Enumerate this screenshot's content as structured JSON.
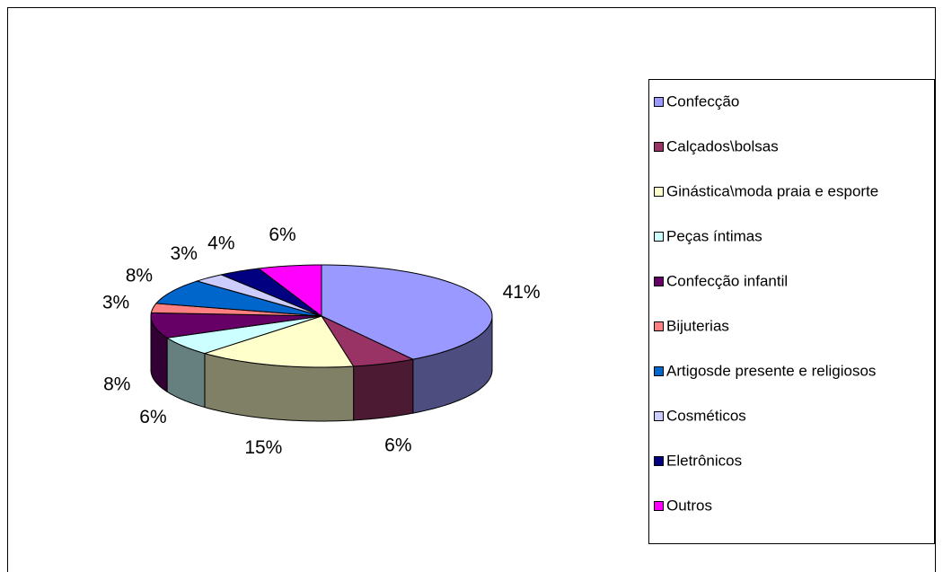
{
  "chart_data": {
    "type": "pie3d",
    "categories": [
      "Confecção",
      "Calçados\\bolsas",
      "Ginástica\\moda praia e esporte",
      "Peças íntimas",
      "Confecção infantil",
      "Bijuterias",
      "Artigosde presente e religiosos",
      "Cosméticos",
      "Eletrônicos",
      "Outros"
    ],
    "values": [
      41,
      6,
      15,
      6,
      8,
      3,
      8,
      3,
      4,
      6
    ],
    "value_labels": [
      "41%",
      "6%",
      "15%",
      "6%",
      "8%",
      "3%",
      "8%",
      "3%",
      "4%",
      "6%"
    ],
    "colors": [
      "#9999FF",
      "#993366",
      "#FFFFCC",
      "#CCFFFF",
      "#660066",
      "#FF8080",
      "#0066CC",
      "#CCCCFF",
      "#000080",
      "#FF00FF"
    ],
    "legend": "right"
  }
}
